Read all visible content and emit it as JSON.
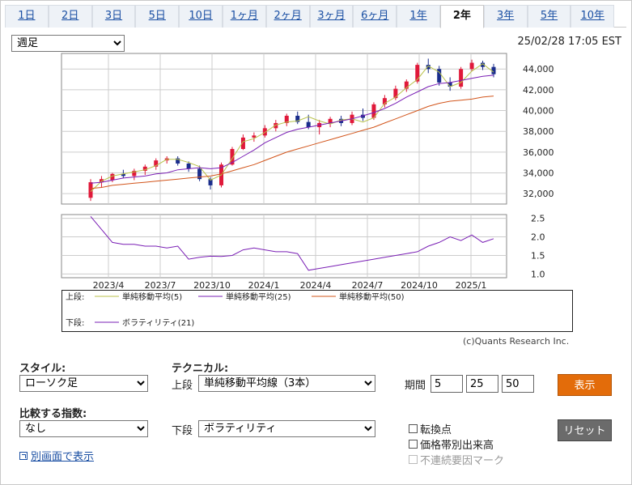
{
  "tabs": [
    "1日",
    "2日",
    "3日",
    "5日",
    "10日",
    "1ヶ月",
    "2ヶ月",
    "3ヶ月",
    "6ヶ月",
    "1年",
    "2年",
    "3年",
    "5年",
    "10年"
  ],
  "active_tab": "2年",
  "period_select": "週足",
  "timestamp": "25/02/28 17:05 EST",
  "legend": {
    "upper_label": "上段:",
    "lower_label": "下段:",
    "items_upper": [
      "単純移動平均(5)",
      "単純移動平均(25)",
      "単純移動平均(50)"
    ],
    "items_lower": [
      "ボラティリティ(21)"
    ]
  },
  "copyright": "(c)Quants Research Inc.",
  "controls": {
    "style_label": "スタイル:",
    "style_value": "ローソク足",
    "technical_label": "テクニカル:",
    "upper_label": "上段",
    "upper_value": "単純移動平均線（3本）",
    "period_label": "期間",
    "period_values": [
      "5",
      "25",
      "50"
    ],
    "show_button": "表示",
    "compare_label": "比較する指数:",
    "compare_value": "なし",
    "lower_label": "下段",
    "lower_value": "ボラティリティ",
    "checkboxes": [
      "転換点",
      "価格帯別出来高",
      "不連続要因マーク"
    ],
    "reset_button": "リセット",
    "new_window_link": "別画面で表示"
  },
  "colors": {
    "up_candle": "#e0193a",
    "down_candle": "#1a2d8c",
    "sma5": "#b8c24a",
    "sma25": "#7a1fb5",
    "sma50": "#d2541a",
    "volatility": "#7a1fb5",
    "show_button": "#e36c0a",
    "reset_button": "#6b6b6b"
  },
  "chart_data": [
    {
      "type": "candlestick",
      "ylim": [
        31000,
        45500
      ],
      "y_ticks": [
        "32,000",
        "34,000",
        "36,000",
        "38,000",
        "40,000",
        "42,000",
        "44,000"
      ],
      "x_ticks": [
        "2023/4",
        "2023/7",
        "2023/10",
        "2024/1",
        "2024/4",
        "2024/7",
        "2024/10",
        "2025/1"
      ],
      "series": [
        {
          "name": "単純移動平均(5)",
          "values": [
            32200,
            33200,
            33700,
            33900,
            34100,
            34300,
            34700,
            35300,
            35300,
            35000,
            34600,
            33300,
            33800,
            35400,
            37000,
            37300,
            37900,
            38600,
            38900,
            39000,
            39400,
            39000,
            38700,
            39100,
            39200,
            38900,
            39300,
            40700,
            41300,
            42200,
            43000,
            44300,
            43700,
            42300,
            42700,
            43800,
            44500,
            43700
          ]
        },
        {
          "name": "単純移動平均(25)",
          "values": [
            33000,
            33100,
            33300,
            33500,
            33600,
            33700,
            33900,
            34000,
            34300,
            34400,
            34500,
            34400,
            34500,
            35000,
            35600,
            36200,
            36900,
            37400,
            37900,
            38200,
            38400,
            38600,
            38800,
            39000,
            39200,
            39500,
            39800,
            40200,
            40700,
            41300,
            41800,
            42300,
            42600,
            42700,
            42900,
            43100,
            43300,
            43400
          ]
        },
        {
          "name": "単純移動平均(50)",
          "values": [
            32500,
            32600,
            32800,
            32900,
            33000,
            33100,
            33200,
            33300,
            33400,
            33500,
            33600,
            33700,
            33900,
            34200,
            34500,
            34800,
            35200,
            35600,
            36000,
            36300,
            36600,
            36900,
            37200,
            37500,
            37800,
            38100,
            38400,
            38800,
            39200,
            39600,
            40000,
            40400,
            40700,
            40900,
            41000,
            41100,
            41300,
            41400
          ]
        }
      ],
      "candles": [
        {
          "o": 31600,
          "h": 33400,
          "l": 31300,
          "c": 33100
        },
        {
          "o": 33100,
          "h": 33700,
          "l": 32600,
          "c": 33400
        },
        {
          "o": 33300,
          "h": 34000,
          "l": 33100,
          "c": 33900
        },
        {
          "o": 33900,
          "h": 34300,
          "l": 33500,
          "c": 33700
        },
        {
          "o": 33700,
          "h": 34400,
          "l": 33300,
          "c": 34200
        },
        {
          "o": 34200,
          "h": 34800,
          "l": 33800,
          "c": 34600
        },
        {
          "o": 34600,
          "h": 35400,
          "l": 34300,
          "c": 35200
        },
        {
          "o": 35200,
          "h": 35600,
          "l": 34900,
          "c": 35400
        },
        {
          "o": 35400,
          "h": 35600,
          "l": 34700,
          "c": 34900
        },
        {
          "o": 34900,
          "h": 35100,
          "l": 34100,
          "c": 34400
        },
        {
          "o": 34400,
          "h": 34700,
          "l": 33200,
          "c": 33400
        },
        {
          "o": 33400,
          "h": 33600,
          "l": 32400,
          "c": 32800
        },
        {
          "o": 32800,
          "h": 35000,
          "l": 32600,
          "c": 34800
        },
        {
          "o": 34800,
          "h": 36500,
          "l": 34700,
          "c": 36300
        },
        {
          "o": 36300,
          "h": 37700,
          "l": 36200,
          "c": 37400
        },
        {
          "o": 37400,
          "h": 37900,
          "l": 37000,
          "c": 37600
        },
        {
          "o": 37600,
          "h": 38600,
          "l": 37400,
          "c": 38300
        },
        {
          "o": 38300,
          "h": 39100,
          "l": 38000,
          "c": 38800
        },
        {
          "o": 38800,
          "h": 39700,
          "l": 38500,
          "c": 39500
        },
        {
          "o": 39500,
          "h": 39900,
          "l": 38700,
          "c": 38900
        },
        {
          "o": 38900,
          "h": 39600,
          "l": 38200,
          "c": 38400
        },
        {
          "o": 38400,
          "h": 39100,
          "l": 37700,
          "c": 38800
        },
        {
          "o": 38800,
          "h": 39400,
          "l": 38400,
          "c": 39200
        },
        {
          "o": 39200,
          "h": 39500,
          "l": 38500,
          "c": 38800
        },
        {
          "o": 38800,
          "h": 39900,
          "l": 38600,
          "c": 39600
        },
        {
          "o": 39600,
          "h": 40200,
          "l": 39000,
          "c": 39300
        },
        {
          "o": 39300,
          "h": 40800,
          "l": 39100,
          "c": 40600
        },
        {
          "o": 40600,
          "h": 41500,
          "l": 40300,
          "c": 41200
        },
        {
          "o": 41200,
          "h": 42400,
          "l": 41000,
          "c": 42100
        },
        {
          "o": 42100,
          "h": 43000,
          "l": 41800,
          "c": 42800
        },
        {
          "o": 42800,
          "h": 44600,
          "l": 42600,
          "c": 44400
        },
        {
          "o": 44400,
          "h": 45000,
          "l": 43600,
          "c": 44000
        },
        {
          "o": 44000,
          "h": 44300,
          "l": 42400,
          "c": 42700
        },
        {
          "o": 42700,
          "h": 43200,
          "l": 41900,
          "c": 42300
        },
        {
          "o": 42300,
          "h": 44200,
          "l": 42100,
          "c": 44000
        },
        {
          "o": 44000,
          "h": 44900,
          "l": 43800,
          "c": 44600
        },
        {
          "o": 44600,
          "h": 44800,
          "l": 43900,
          "c": 44200
        },
        {
          "o": 44200,
          "h": 44500,
          "l": 43200,
          "c": 43500
        }
      ]
    },
    {
      "type": "line",
      "ylim": [
        0.9,
        2.6
      ],
      "y_ticks": [
        "1.0",
        "1.5",
        "2.0",
        "2.5"
      ],
      "series": [
        {
          "name": "ボラティリティ(21)",
          "values": [
            2.55,
            2.2,
            1.85,
            1.8,
            1.8,
            1.75,
            1.75,
            1.7,
            1.75,
            1.4,
            1.45,
            1.48,
            1.47,
            1.5,
            1.65,
            1.7,
            1.65,
            1.6,
            1.6,
            1.55,
            1.1,
            1.15,
            1.2,
            1.25,
            1.3,
            1.35,
            1.4,
            1.45,
            1.5,
            1.55,
            1.6,
            1.75,
            1.85,
            2.0,
            1.9,
            2.05,
            1.85,
            1.95
          ]
        }
      ]
    }
  ]
}
